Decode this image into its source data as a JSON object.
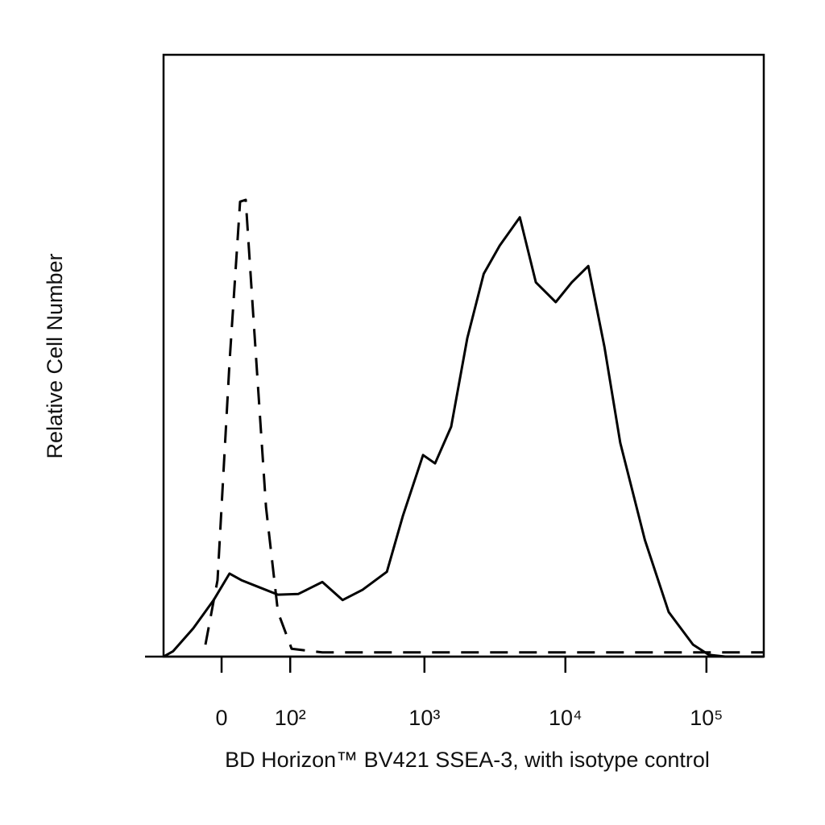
{
  "chart_data": {
    "type": "line",
    "x_label": "BD Horizon™ BV421 SSEA-3, with isotype control",
    "y_label": "Relative Cell Number",
    "x_scale": "biexponential",
    "xlim": [
      -80,
      255000
    ],
    "ylim": [
      0,
      100
    ],
    "xticks": [
      0,
      {
        "value": 100,
        "label": "10²"
      },
      {
        "value": 1000,
        "label": "10³"
      },
      {
        "value": 10000,
        "label": "10⁴"
      },
      {
        "value": 100000,
        "label": "10⁵"
      }
    ],
    "series": [
      {
        "name": "SSEA-3",
        "color": "#000000",
        "dash": false,
        "x": [
          -80,
          -64,
          -35,
          -9.5,
          9.5,
          24,
          46,
          77,
          117,
          182,
          258,
          361,
          540,
          703,
          978,
          1190,
          1548,
          2015,
          2635,
          3424,
          4752,
          6170,
          8540,
          11100,
          14530,
          18900,
          24500,
          36600,
          54000,
          80300,
          104000,
          136000,
          255000
        ],
        "values": [
          0,
          0.9,
          4.7,
          9.4,
          13.8,
          12.7,
          11.6,
          10.3,
          10.4,
          12.4,
          9.4,
          11.1,
          14.1,
          23.4,
          33.5,
          32.1,
          38.2,
          52.9,
          63.6,
          68.3,
          73.0,
          62.2,
          58.9,
          62.2,
          64.9,
          51.5,
          35.5,
          19.4,
          7.4,
          2.0,
          0.3,
          0,
          0
        ]
      },
      {
        "name": "Isotype control",
        "color": "#000000",
        "dash": true,
        "x": [
          -19.5,
          -4.8,
          9.5,
          22.4,
          29.5,
          40,
          57.7,
          77,
          103,
          182,
          255000
        ],
        "values": [
          2,
          12.7,
          48.9,
          75.6,
          75.9,
          55.6,
          24.8,
          7.4,
          1.3,
          0.7,
          0.7
        ]
      }
    ]
  }
}
